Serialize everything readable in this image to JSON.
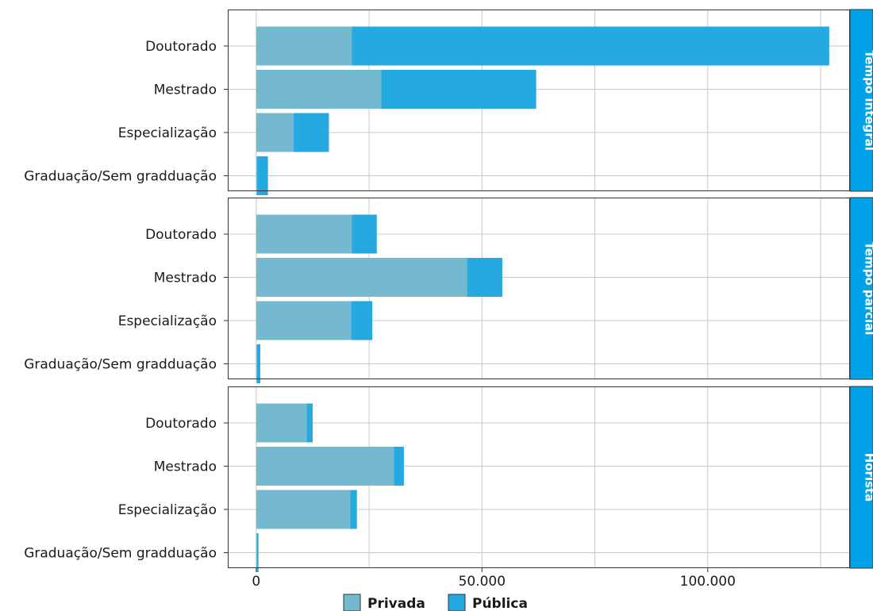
{
  "chart_data": {
    "type": "bar",
    "orientation": "horizontal",
    "stacked": true,
    "categories": [
      "Doutorado",
      "Mestrado",
      "Especialização",
      "Graduação/Sem gradduação"
    ],
    "facets": [
      {
        "label": "Tempo integral",
        "series": [
          {
            "name": "Privada",
            "values": [
              21200,
              27700,
              8300,
              200
            ]
          },
          {
            "name": "Pública",
            "values": [
              105700,
              34300,
              7800,
              2400
            ]
          }
        ]
      },
      {
        "label": "Tempo parcial",
        "series": [
          {
            "name": "Privada",
            "values": [
              21200,
              46700,
              21000,
              200
            ]
          },
          {
            "name": "Pública",
            "values": [
              5500,
              7800,
              4700,
              700
            ]
          }
        ]
      },
      {
        "label": "Horista",
        "series": [
          {
            "name": "Privada",
            "values": [
              11200,
              30500,
              20800,
              200
            ]
          },
          {
            "name": "Pública",
            "values": [
              1300,
              2200,
              1500,
              300
            ]
          }
        ]
      }
    ],
    "x_ticks": [
      0,
      50000,
      100000
    ],
    "x_tick_labels": [
      "0",
      "50.000",
      "100.000"
    ],
    "xlim": [
      -6300,
      131500
    ],
    "grid": true,
    "legend_position": "bottom",
    "colors": {
      "Privada": "#74b9cf",
      "Pública": "#24a9e1",
      "strip": "#00a3e8"
    }
  }
}
